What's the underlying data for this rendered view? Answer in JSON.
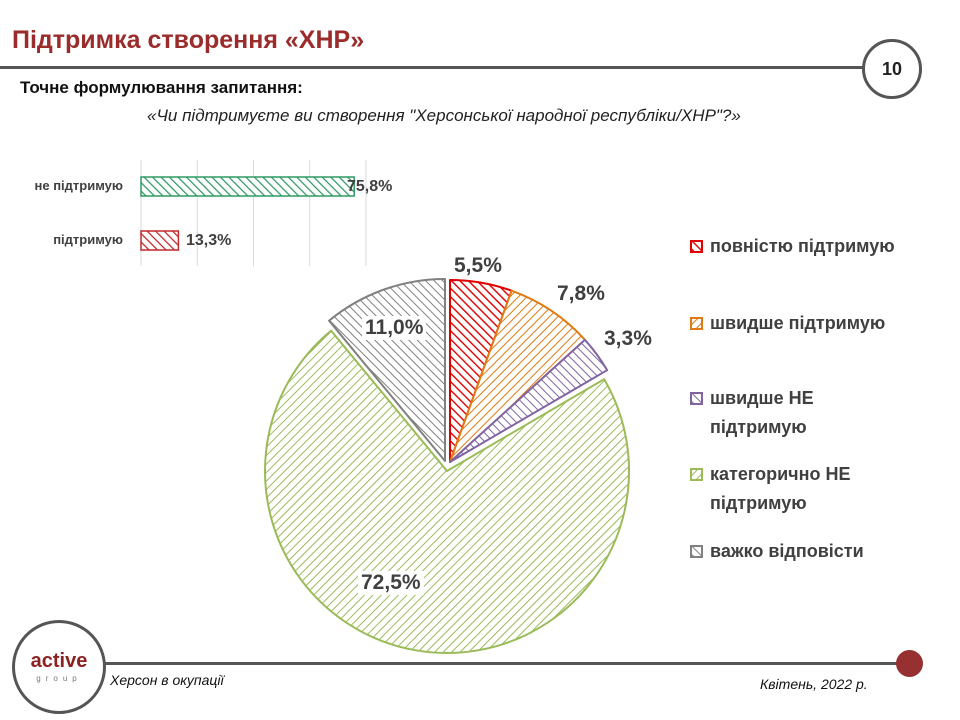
{
  "header": {
    "title": "Підтримка створення «ХНР»",
    "page_number": "10"
  },
  "question": {
    "label": "Точне формулювання запитання:",
    "text": "«Чи підтримуєте ви створення \"Херсонської народної республіки/ХНР\"?»"
  },
  "footer": {
    "left": "Херсон в окупації",
    "right": "Квітень, 2022 р.",
    "logo_main": "active",
    "logo_sub": "group"
  },
  "chart_data": [
    {
      "type": "bar",
      "orientation": "horizontal",
      "categories": [
        "не підтримую",
        "підтримую"
      ],
      "values": [
        75.8,
        13.3
      ],
      "labels": [
        "75,8%",
        "13,3%"
      ],
      "colors": [
        "#2e9a62",
        "#c0282d"
      ],
      "xlim": [
        0,
        80
      ],
      "grid": true
    },
    {
      "type": "pie",
      "categories": [
        "повністю підтримую",
        "швидше підтримую",
        "швидше НЕ підтримую",
        "категорично НЕ підтримую",
        "важко відповісти"
      ],
      "values": [
        5.5,
        7.8,
        3.3,
        72.5,
        11.0
      ],
      "labels": [
        "5,5%",
        "7,8%",
        "3,3%",
        "72,5%",
        "11,0%"
      ],
      "colors": [
        "#e00000",
        "#e07b14",
        "#8064a2",
        "#9bbb59",
        "#808080"
      ],
      "start": "12 o'clock",
      "direction": "clockwise",
      "legend": "right"
    }
  ]
}
